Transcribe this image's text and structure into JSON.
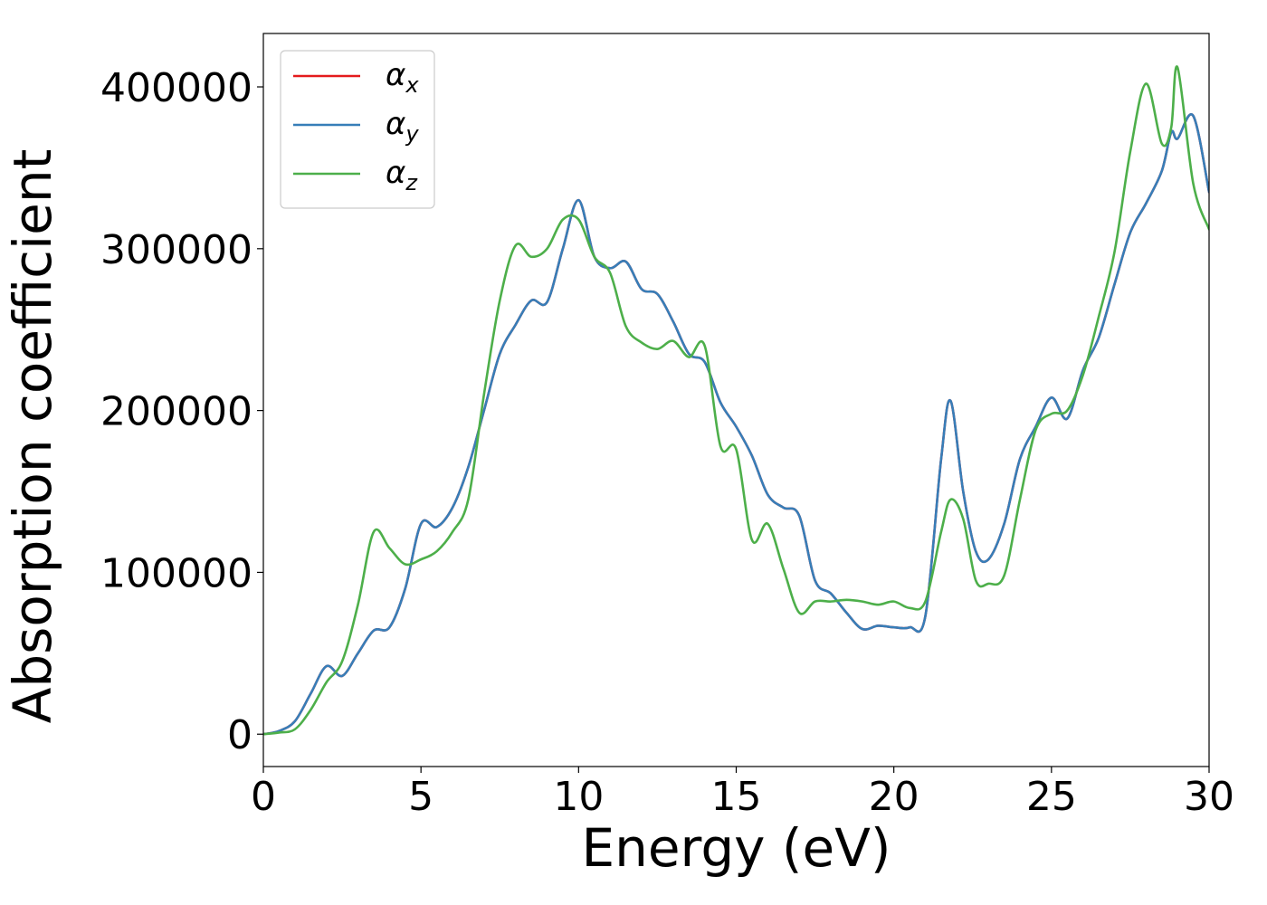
{
  "chart_data": {
    "type": "line",
    "xlabel": "Energy (eV)",
    "ylabel": "Absorption coefficient",
    "xlim": [
      0,
      30
    ],
    "ylim": [
      -20000,
      433000
    ],
    "xticks": [
      "0",
      "5",
      "10",
      "15",
      "20",
      "25",
      "30"
    ],
    "yticks": [
      "0",
      "100000",
      "200000",
      "300000",
      "400000"
    ],
    "grid": false,
    "legend_position": "top-left",
    "series": [
      {
        "name": "α",
        "subscript": "x",
        "color": "#e41a1c",
        "x": [
          0,
          0.5,
          1,
          1.5,
          2,
          2.5,
          3,
          3.5,
          4,
          4.5,
          5,
          5.5,
          6,
          6.5,
          7,
          7.5,
          8,
          8.5,
          9,
          9.5,
          10,
          10.5,
          11,
          11.5,
          12,
          12.5,
          13,
          13.5,
          14,
          14.5,
          15,
          15.5,
          16,
          16.5,
          17,
          17.5,
          18,
          18.5,
          19,
          19.5,
          20,
          20.5,
          21,
          21.5,
          21.8,
          22.2,
          22.6,
          23,
          23.5,
          24,
          24.5,
          25,
          25.5,
          26,
          26.5,
          27,
          27.5,
          28,
          28.5,
          28.8,
          29,
          29.5,
          30
        ],
        "y": [
          0,
          2000,
          8000,
          25000,
          42000,
          36000,
          50000,
          64000,
          66000,
          90000,
          130000,
          128000,
          140000,
          165000,
          200000,
          235000,
          253000,
          268000,
          267000,
          300000,
          330000,
          295000,
          288000,
          292000,
          275000,
          272000,
          255000,
          235000,
          230000,
          205000,
          190000,
          172000,
          148000,
          140000,
          135000,
          95000,
          87000,
          75000,
          65000,
          67000,
          66000,
          66000,
          73000,
          170000,
          206000,
          150000,
          113000,
          108000,
          130000,
          170000,
          190000,
          208000,
          195000,
          225000,
          245000,
          278000,
          310000,
          328000,
          348000,
          372000,
          368000,
          382000,
          335000
        ]
      },
      {
        "name": "α",
        "subscript": "y",
        "color": "#377eb8",
        "x": [
          0,
          0.5,
          1,
          1.5,
          2,
          2.5,
          3,
          3.5,
          4,
          4.5,
          5,
          5.5,
          6,
          6.5,
          7,
          7.5,
          8,
          8.5,
          9,
          9.5,
          10,
          10.5,
          11,
          11.5,
          12,
          12.5,
          13,
          13.5,
          14,
          14.5,
          15,
          15.5,
          16,
          16.5,
          17,
          17.5,
          18,
          18.5,
          19,
          19.5,
          20,
          20.5,
          21,
          21.5,
          21.8,
          22.2,
          22.6,
          23,
          23.5,
          24,
          24.5,
          25,
          25.5,
          26,
          26.5,
          27,
          27.5,
          28,
          28.5,
          28.8,
          29,
          29.5,
          30
        ],
        "y": [
          0,
          2000,
          8000,
          25000,
          42000,
          36000,
          50000,
          64000,
          66000,
          90000,
          130000,
          128000,
          140000,
          165000,
          200000,
          235000,
          253000,
          268000,
          267000,
          300000,
          330000,
          295000,
          288000,
          292000,
          275000,
          272000,
          255000,
          235000,
          230000,
          205000,
          190000,
          172000,
          148000,
          140000,
          135000,
          95000,
          87000,
          75000,
          65000,
          67000,
          66000,
          66000,
          73000,
          170000,
          206000,
          150000,
          113000,
          108000,
          130000,
          170000,
          190000,
          208000,
          195000,
          225000,
          245000,
          278000,
          310000,
          328000,
          348000,
          372000,
          368000,
          382000,
          335000
        ]
      },
      {
        "name": "α",
        "subscript": "z",
        "color": "#4daf4a",
        "x": [
          0,
          0.5,
          1,
          1.5,
          2,
          2.5,
          3,
          3.5,
          4,
          4.5,
          5,
          5.5,
          6,
          6.5,
          7,
          7.5,
          8,
          8.5,
          9,
          9.5,
          10,
          10.5,
          11,
          11.5,
          12,
          12.5,
          13,
          13.5,
          14,
          14.5,
          15,
          15.5,
          16,
          16.5,
          17,
          17.5,
          18,
          18.5,
          19,
          19.5,
          20,
          20.5,
          21,
          21.5,
          21.8,
          22.2,
          22.6,
          23,
          23.5,
          24,
          24.5,
          25,
          25.5,
          26,
          26.5,
          27,
          27.5,
          28,
          28.5,
          28.8,
          29,
          29.5,
          30
        ],
        "y": [
          0,
          1000,
          3000,
          15000,
          32000,
          45000,
          80000,
          125000,
          115000,
          105000,
          108000,
          113000,
          125000,
          145000,
          210000,
          268000,
          302000,
          295000,
          300000,
          318000,
          318000,
          295000,
          285000,
          252000,
          242000,
          238000,
          243000,
          233000,
          240000,
          178000,
          176000,
          120000,
          130000,
          102000,
          75000,
          82000,
          82000,
          83000,
          82000,
          80000,
          82000,
          78000,
          82000,
          125000,
          145000,
          133000,
          95000,
          93000,
          98000,
          145000,
          188000,
          198000,
          200000,
          222000,
          258000,
          298000,
          360000,
          402000,
          365000,
          375000,
          412000,
          340000,
          312000
        ]
      }
    ]
  }
}
